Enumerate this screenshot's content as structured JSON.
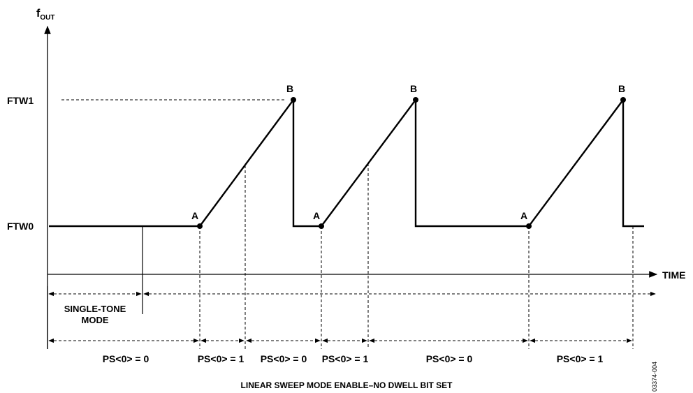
{
  "axes": {
    "y_label_main": "f",
    "y_label_sub": "OUT",
    "x_label": "TIME",
    "ftw1_label": "FTW1",
    "ftw0_label": "FTW0"
  },
  "points": {
    "a_label": "A",
    "b_label": "B"
  },
  "intervals": {
    "single_tone_line1": "SINGLE-TONE",
    "single_tone_line2": "MODE",
    "ps": [
      "PS<0> = 0",
      "PS<0> = 1",
      "PS<0> = 0",
      "PS<0> = 1",
      "PS<0> = 0",
      "PS<0> = 1"
    ]
  },
  "caption": "LINEAR SWEEP MODE ENABLE–NO DWELL BIT SET",
  "figure_id": "03374-004"
}
